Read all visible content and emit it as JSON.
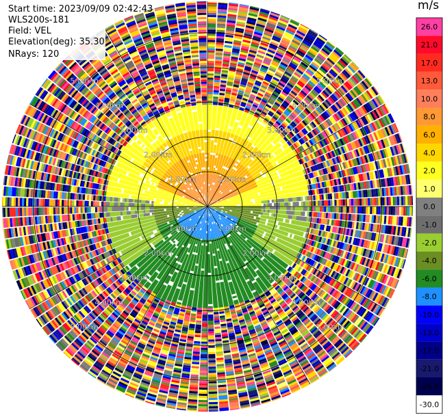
{
  "header": {
    "start_time": "Start time: 2023/09/09 02:42:43",
    "station": "WLS200s-181",
    "field": "Field: VEL",
    "elevation": "Elevation(deg): 35.30",
    "nrays": "NRays: 120"
  },
  "chart_data": {
    "type": "heatmap",
    "projection": "polar-ppi",
    "n_rays": 120,
    "range_ring_labels": [
      "1.00km",
      "2.00km",
      "3.00km",
      "4.00km",
      "5.00km"
    ],
    "range_rings_km": [
      1,
      2,
      3,
      4,
      5
    ],
    "max_range_km": 5.9,
    "colorbar": {
      "unit": "m/s",
      "tick_labels": [
        "26.0",
        "21.0",
        "17.0",
        "13.0",
        "10.0",
        "8.0",
        "6.0",
        "4.0",
        "2.0",
        "1.0",
        "0.0",
        "-1.0",
        "-2.0",
        "-4.0",
        "-6.0",
        "-8.0",
        "-10.0",
        "-13.0",
        "-17.0",
        "-21.0",
        "-26.0",
        "-30.0"
      ],
      "colors": [
        "#ff3fa3",
        "#ff0a2a",
        "#ff2a20",
        "#ff5a3a",
        "#ff7f5c",
        "#ff9933",
        "#ffb000",
        "#ffd700",
        "#ffff20",
        "#ffff70",
        "#808080",
        "#6e6e6e",
        "#9acd32",
        "#6b8e23",
        "#228b22",
        "#1e90ff",
        "#0000ff",
        "#0000cd",
        "#00008b",
        "#191970",
        "#000050",
        "#ffffff"
      ]
    },
    "velocity_pattern_by_range_km": [
      {
        "range": [
          0,
          1.5
        ],
        "north": "8.0",
        "south": "-8.0"
      },
      {
        "range": [
          1.5,
          2.8
        ],
        "north": "4.0",
        "south": "-6.0"
      },
      {
        "range": [
          2.8,
          3.5
        ],
        "note": "noisy"
      }
    ]
  }
}
